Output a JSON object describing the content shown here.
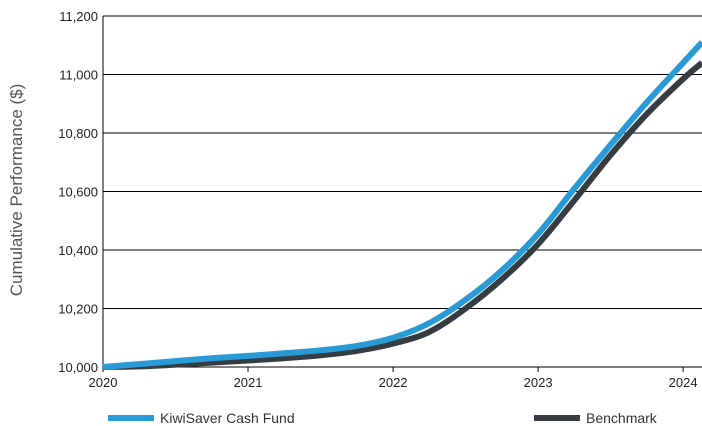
{
  "chart_data": {
    "type": "line",
    "title": "",
    "xlabel": "",
    "ylabel": "Cumulative Performance ($)",
    "xlim": [
      2020,
      2024.13
    ],
    "ylim": [
      10000,
      11200
    ],
    "x_ticks": [
      2020,
      2021,
      2022,
      2023,
      2024
    ],
    "x_tick_labels": [
      "2020",
      "2021",
      "2022",
      "2023",
      "2024"
    ],
    "y_ticks": [
      10000,
      10200,
      10400,
      10600,
      10800,
      11000,
      11200
    ],
    "y_tick_labels": [
      "10,000",
      "10,200",
      "10,400",
      "10,600",
      "10,800",
      "11,000",
      "11,200"
    ],
    "grid": "horizontal",
    "legend_position": "bottom",
    "series": [
      {
        "name": "KiwiSaver Cash Fund",
        "color": "#2a9ad6",
        "points": [
          [
            2020.0,
            10000
          ],
          [
            2020.25,
            10010
          ],
          [
            2020.5,
            10020
          ],
          [
            2020.75,
            10030
          ],
          [
            2021.0,
            10038
          ],
          [
            2021.25,
            10047
          ],
          [
            2021.5,
            10057
          ],
          [
            2021.75,
            10072
          ],
          [
            2022.0,
            10100
          ],
          [
            2022.25,
            10150
          ],
          [
            2022.5,
            10230
          ],
          [
            2022.75,
            10330
          ],
          [
            2023.0,
            10455
          ],
          [
            2023.25,
            10610
          ],
          [
            2023.5,
            10760
          ],
          [
            2023.75,
            10905
          ],
          [
            2024.0,
            11040
          ],
          [
            2024.13,
            11110
          ]
        ]
      },
      {
        "name": "Benchmark",
        "color": "#363d42",
        "points": [
          [
            2020.0,
            10000
          ],
          [
            2020.25,
            10002
          ],
          [
            2020.5,
            10008
          ],
          [
            2020.75,
            10015
          ],
          [
            2021.0,
            10022
          ],
          [
            2021.25,
            10030
          ],
          [
            2021.5,
            10040
          ],
          [
            2021.75,
            10055
          ],
          [
            2022.0,
            10080
          ],
          [
            2022.25,
            10120
          ],
          [
            2022.5,
            10200
          ],
          [
            2022.75,
            10300
          ],
          [
            2023.0,
            10420
          ],
          [
            2023.25,
            10570
          ],
          [
            2023.5,
            10725
          ],
          [
            2023.75,
            10865
          ],
          [
            2024.0,
            10985
          ],
          [
            2024.13,
            11040
          ]
        ]
      }
    ]
  }
}
